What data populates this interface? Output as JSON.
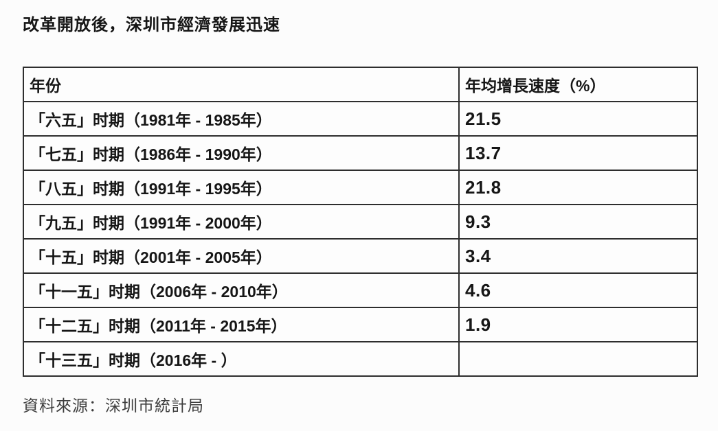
{
  "page": {
    "title": "改革開放後，深圳市經濟發展迅速",
    "source_note": "資料來源：深圳市統計局"
  },
  "table": {
    "headers": [
      "年份",
      "年均增長速度（%）"
    ],
    "rows": [
      {
        "period": "「六五」时期（1981年 - 1985年）",
        "rate": "21.5"
      },
      {
        "period": "「七五」时期（1986年 - 1990年）",
        "rate": "13.7"
      },
      {
        "period": "「八五」时期（1991年 - 1995年）",
        "rate": "21.8"
      },
      {
        "period": "「九五」时期（1991年 - 2000年）",
        "rate": "9.3"
      },
      {
        "period": "「十五」时期（2001年 - 2005年）",
        "rate": "3.4"
      },
      {
        "period": "「十一五」时期（2006年 - 2010年）",
        "rate": "4.6"
      },
      {
        "period": "「十二五」时期（2011年 - 2015年）",
        "rate": "1.9"
      },
      {
        "period": "「十三五」时期（2016年 - ）",
        "rate": ""
      }
    ]
  },
  "chart_data": {
    "type": "table",
    "title": "改革開放後，深圳市經濟發展迅速",
    "columns": [
      "年份",
      "年均增長速度（%）"
    ],
    "categories": [
      "「六五」时期（1981年 - 1985年）",
      "「七五」时期（1986年 - 1990年）",
      "「八五」时期（1991年 - 1995年）",
      "「九五」时期（1991年 - 2000年）",
      "「十五」时期（2001年 - 2005年）",
      "「十一五」时期（2006年 - 2010年）",
      "「十二五」时期（2011年 - 2015年）",
      "「十三五」时期（2016年 - ）"
    ],
    "values": [
      21.5,
      13.7,
      21.8,
      9.3,
      3.4,
      4.6,
      1.9,
      null
    ],
    "source": "資料來源：深圳市統計局"
  },
  "colors": {
    "background": "#fcfcfc",
    "border": "#2e2e2e",
    "text": "#161616",
    "note": "#3d3d3d"
  }
}
